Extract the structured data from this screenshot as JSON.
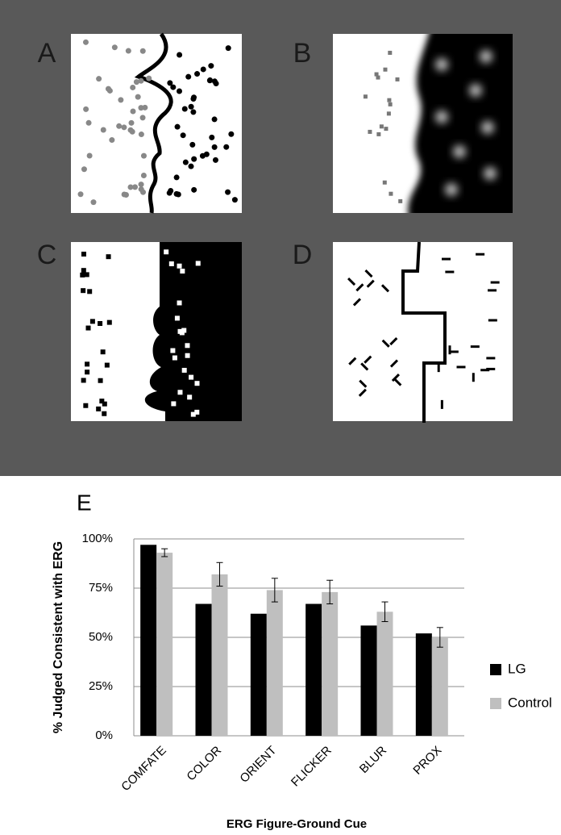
{
  "panels": {
    "labels": [
      "A",
      "B",
      "C",
      "D"
    ]
  },
  "chart_data": {
    "type": "bar",
    "label": "E",
    "ylabel": "% Judged Consistent with ERG",
    "xlabel": "ERG Figure-Ground Cue",
    "categories": [
      "COMFATE",
      "COLOR",
      "ORIENT",
      "FLICKER",
      "BLUR",
      "PROX"
    ],
    "series": [
      {
        "name": "LG",
        "color": "#000000",
        "values": [
          97,
          67,
          62,
          67,
          56,
          52
        ]
      },
      {
        "name": "Control",
        "color": "#bfbfbf",
        "values": [
          93,
          82,
          74,
          73,
          63,
          50
        ],
        "errors": [
          2,
          6,
          6,
          6,
          5,
          5
        ]
      }
    ],
    "ylim": [
      0,
      100
    ],
    "yticks": [
      {
        "value": 0,
        "label": "0%"
      },
      {
        "value": 25,
        "label": "25%"
      },
      {
        "value": 50,
        "label": "50%"
      },
      {
        "value": 75,
        "label": "75%"
      },
      {
        "value": 100,
        "label": "100%"
      }
    ],
    "grid": true,
    "legend": "right"
  }
}
